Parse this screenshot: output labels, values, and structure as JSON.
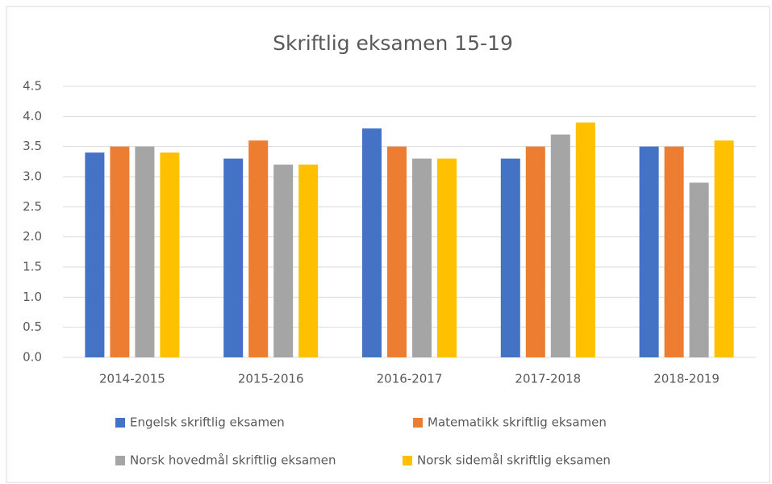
{
  "chart_data": {
    "type": "bar",
    "title": "Skriftlig eksamen 15-19",
    "categories": [
      "2014-2015",
      "2015-2016",
      "2016-2017",
      "2017-2018",
      "2018-2019"
    ],
    "series": [
      {
        "name": "Engelsk skriftlig eksamen",
        "color": "#4472c4",
        "values": [
          3.4,
          3.3,
          3.8,
          3.3,
          3.5
        ]
      },
      {
        "name": "Matematikk skriftlig eksamen",
        "color": "#ed7d31",
        "values": [
          3.5,
          3.6,
          3.5,
          3.5,
          3.5
        ]
      },
      {
        "name": "Norsk hovedmål skriftlig eksamen",
        "color": "#a5a5a5",
        "values": [
          3.5,
          3.2,
          3.3,
          3.7,
          2.9
        ]
      },
      {
        "name": "Norsk sidemål skriftlig eksamen",
        "color": "#ffc000",
        "values": [
          3.4,
          3.2,
          3.3,
          3.9,
          3.6
        ]
      }
    ],
    "ylim": [
      0,
      4.5
    ],
    "yticks": [
      {
        "value": 0,
        "label": "0.0"
      },
      0.5,
      {
        "value": 1,
        "label": "1.0"
      },
      1.5,
      {
        "value": 2,
        "label": "2.0"
      },
      2.5,
      {
        "value": 3,
        "label": "3.0"
      },
      3.5,
      {
        "value": 4,
        "label": "4.0"
      },
      4.5
    ],
    "grid": true,
    "legend": "bottom"
  }
}
